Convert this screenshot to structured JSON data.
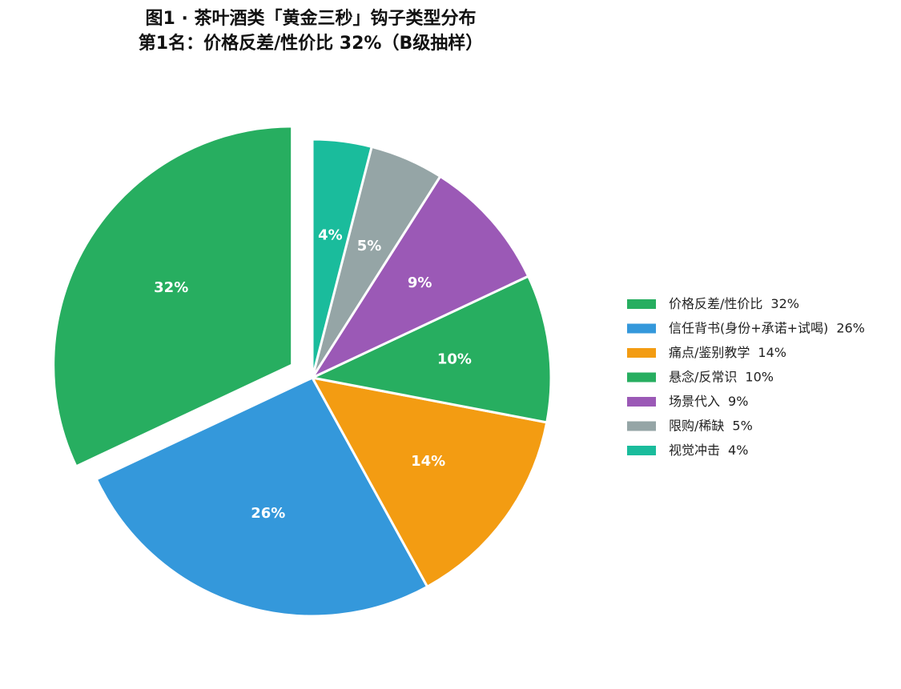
{
  "chart_data": {
    "type": "pie",
    "title": "图1 · 茶叶酒类「黄金三秒」钩子类型分布",
    "subtitle": "第1名：价格反差/性价比 32%（B级抽样）",
    "categories": [
      "价格反差/性价比",
      "信任背书(身份+承诺+试喝)",
      "痛点/鉴别教学",
      "悬念/反常识",
      "场景代入",
      "限购/稀缺",
      "视觉冲击"
    ],
    "values": [
      32,
      26,
      14,
      10,
      9,
      5,
      4
    ],
    "value_labels": [
      "32%",
      "26%",
      "14%",
      "10%",
      "9%",
      "5%",
      "4%"
    ],
    "colors": [
      "#27ae60",
      "#3498db",
      "#f39c12",
      "#27ae60",
      "#9b59b6",
      "#95a5a6",
      "#1abc9c"
    ],
    "legend": "right"
  }
}
